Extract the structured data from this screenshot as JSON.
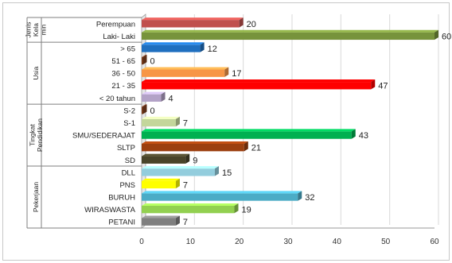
{
  "chart_data": {
    "type": "bar",
    "orientation": "horizontal",
    "xlim": [
      0,
      60
    ],
    "xticks": [
      0,
      10,
      20,
      30,
      40,
      50,
      60
    ],
    "grid": "vertical",
    "legend": "none",
    "groups": [
      {
        "label": [
          "Jenis",
          "Kela",
          "min"
        ],
        "items": [
          {
            "label": "Perempuan",
            "value": 20,
            "color": "#c0504d"
          },
          {
            "label": "Laki- Laki",
            "value": 60,
            "color": "#77933c"
          }
        ]
      },
      {
        "label": [
          "Usia"
        ],
        "items": [
          {
            "label": "> 65",
            "value": 12,
            "color": "#1f6fbf"
          },
          {
            "label": "51 - 65",
            "value": 0,
            "color": "#7f3f1f"
          },
          {
            "label": "36 - 50",
            "value": 17,
            "color": "#f79646"
          },
          {
            "label": "21 - 35",
            "value": 47,
            "color": "#ff0000"
          },
          {
            "label": "< 20 tahun",
            "value": 4,
            "color": "#b3a2c7"
          }
        ]
      },
      {
        "label": [
          "Tingkat",
          "Pendidikan"
        ],
        "items": [
          {
            "label": "S-2",
            "value": 0,
            "color": "#7f3f1f"
          },
          {
            "label": "S-1",
            "value": 7,
            "color": "#c3d69b"
          },
          {
            "label": "SMU/SEDERAJAT",
            "value": 43,
            "color": "#00b050"
          },
          {
            "label": "SLTP",
            "value": 21,
            "color": "#9c3f0f"
          },
          {
            "label": "SD",
            "value": 9,
            "color": "#494429"
          }
        ]
      },
      {
        "label": [
          "Pekerjaan"
        ],
        "items": [
          {
            "label": "DLL",
            "value": 15,
            "color": "#93cddd"
          },
          {
            "label": "PNS",
            "value": 7,
            "color": "#ffff00"
          },
          {
            "label": "BURUH",
            "value": 32,
            "color": "#4bacc6"
          },
          {
            "label": "WIRASWASTA",
            "value": 19,
            "color": "#92d050"
          },
          {
            "label": "PETANI",
            "value": 7,
            "color": "#7f7f7f"
          }
        ]
      }
    ]
  }
}
